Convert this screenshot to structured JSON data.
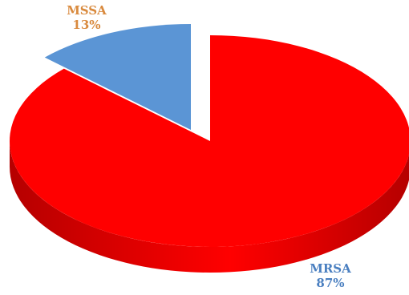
{
  "chart_data": {
    "type": "pie",
    "style": "3d-exploded",
    "title": "",
    "slices": [
      {
        "label": "MRSA",
        "percent_label": "87%",
        "value": 87,
        "color": "#ff0000",
        "side_color": "#b50000",
        "label_color": "#4a7fc0"
      },
      {
        "label": "MSSA",
        "percent_label": "13%",
        "value": 13,
        "color": "#5b95d5",
        "side_color": "#2e5a86",
        "label_color": "#d98a3e"
      }
    ]
  }
}
